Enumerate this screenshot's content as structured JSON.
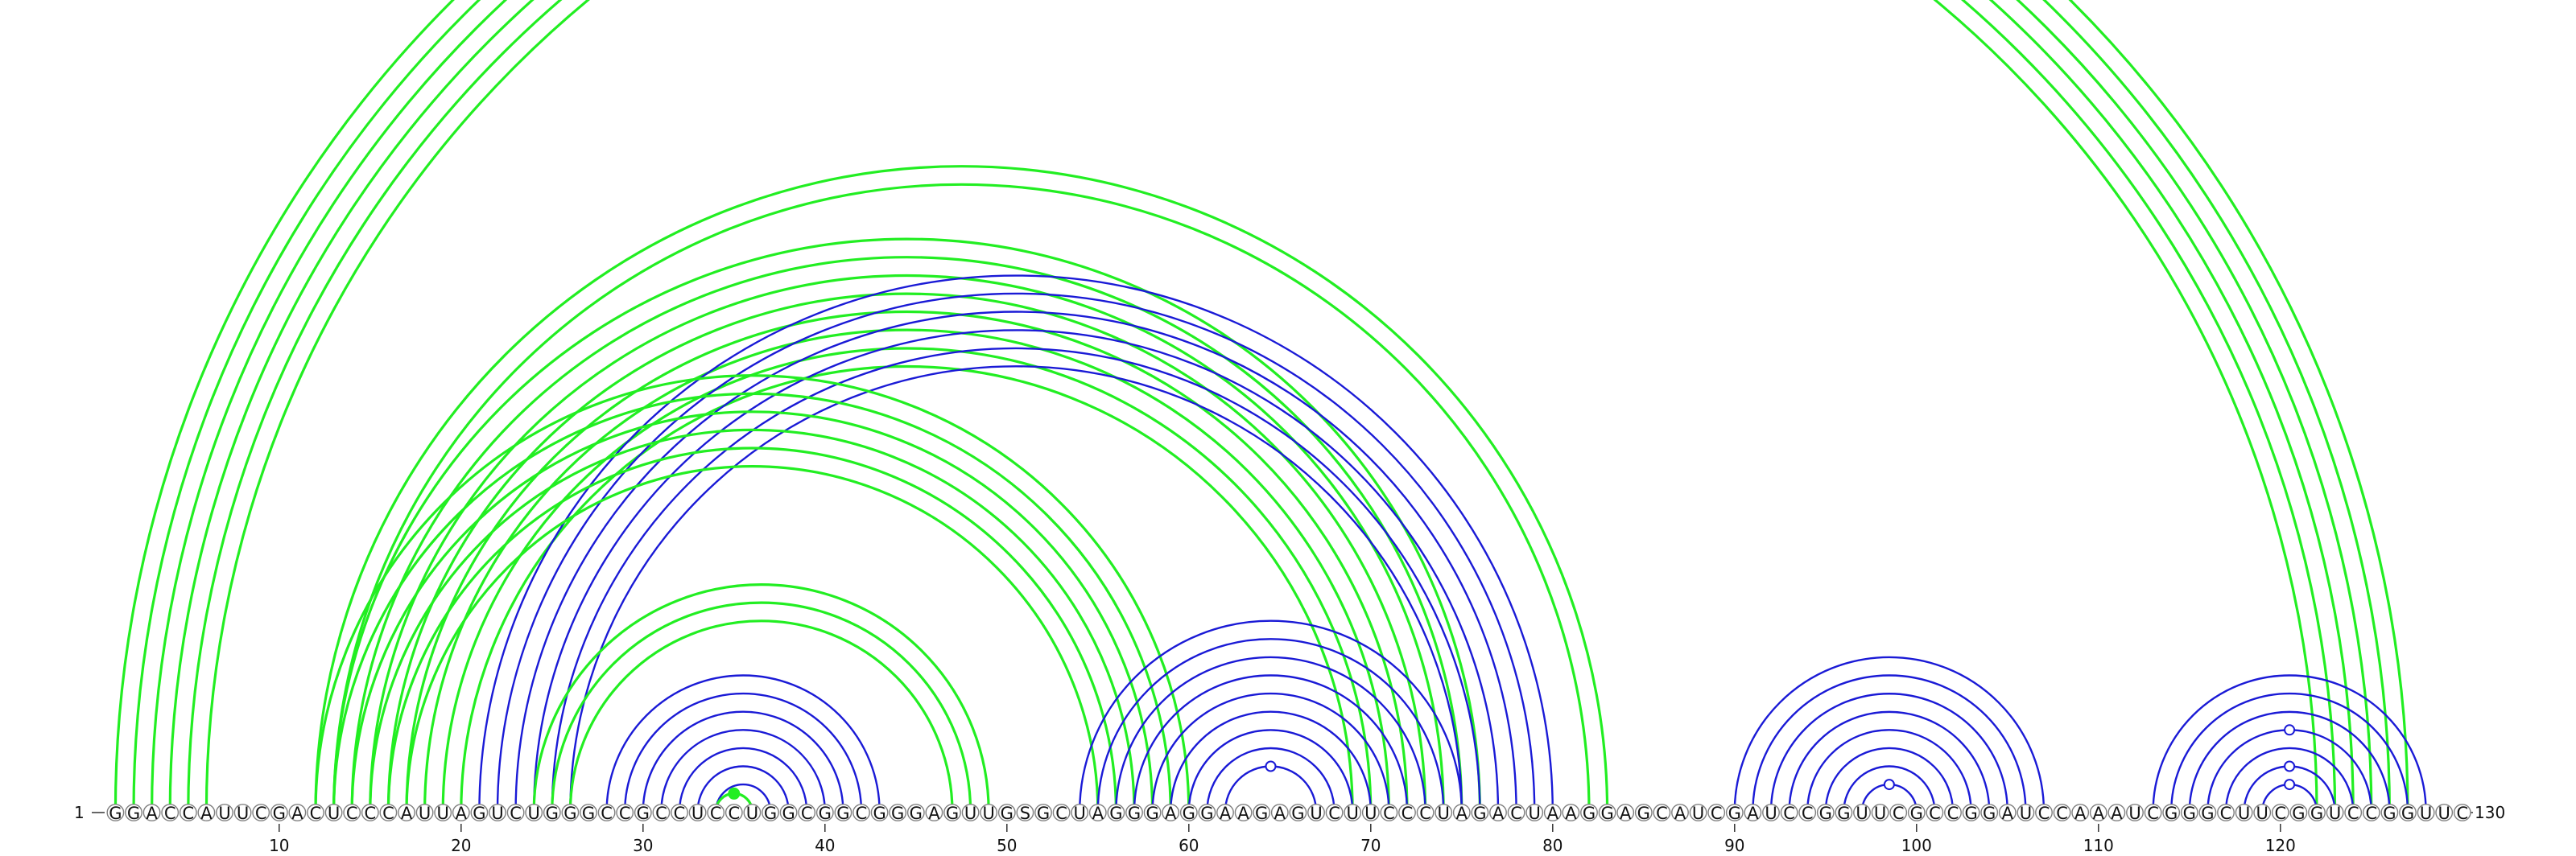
{
  "sequence": "GGACCAUUCGACUCCCAUUAGUCUGGGCCGCCUCCUGGCGGCGGGAGUUGSGCUAGGGAGGAAGAGUCUUCCCUAGACUAAGGAGCAUCGAUCCGGUUCGCCGGAUCCAAAUCGGGCUUCGGUCCGGUUC",
  "labels": {
    "start": "1",
    "end": "130",
    "ticks": [
      "10",
      "20",
      "30",
      "40",
      "50",
      "60",
      "70",
      "80",
      "90",
      "100",
      "110",
      "120"
    ]
  },
  "colors": {
    "green": "#22ee22",
    "blue": "#1a1ad6",
    "circle_stroke": "#808080"
  },
  "arc_groups": [
    {
      "name": "outer-helix",
      "color": "green",
      "pairs": [
        [
          1,
          127
        ],
        [
          2,
          126
        ],
        [
          3,
          125
        ],
        [
          4,
          124
        ],
        [
          5,
          123
        ],
        [
          6,
          122
        ]
      ]
    },
    {
      "name": "green-helix-12-83",
      "color": "green",
      "pairs": [
        [
          12,
          83
        ],
        [
          13,
          82
        ]
      ]
    },
    {
      "name": "green-helix-13-76",
      "color": "green",
      "pairs": [
        [
          13,
          76
        ],
        [
          14,
          75
        ],
        [
          15,
          74
        ],
        [
          16,
          73
        ],
        [
          17,
          72
        ],
        [
          18,
          71
        ],
        [
          19,
          70
        ],
        [
          20,
          69
        ]
      ]
    },
    {
      "name": "blue-helix-21-80",
      "color": "blue",
      "pairs": [
        [
          21,
          80
        ],
        [
          22,
          79
        ],
        [
          23,
          78
        ],
        [
          24,
          77
        ],
        [
          25,
          76
        ],
        [
          26,
          75
        ]
      ]
    },
    {
      "name": "green-helix-12-60",
      "color": "green",
      "pairs": [
        [
          12,
          60
        ],
        [
          13,
          59
        ],
        [
          14,
          58
        ],
        [
          15,
          57
        ],
        [
          16,
          56
        ],
        [
          17,
          55
        ]
      ]
    },
    {
      "name": "green-helix-24-49",
      "color": "green",
      "pairs": [
        [
          24,
          49
        ],
        [
          25,
          48
        ],
        [
          26,
          47
        ]
      ]
    },
    {
      "name": "blue-helix-28-43",
      "color": "blue",
      "pairs": [
        [
          28,
          43
        ],
        [
          29,
          42
        ],
        [
          30,
          41
        ],
        [
          31,
          40
        ],
        [
          32,
          39
        ],
        [
          33,
          38
        ],
        [
          34,
          37
        ]
      ]
    },
    {
      "name": "green-hairpin-34-36",
      "color": "green",
      "pairs": [
        [
          34,
          36
        ]
      ]
    },
    {
      "name": "blue-helix-54-75",
      "color": "blue",
      "pairs": [
        [
          54,
          75
        ],
        [
          55,
          74
        ],
        [
          56,
          73
        ],
        [
          57,
          72
        ],
        [
          58,
          71
        ],
        [
          59,
          70
        ],
        [
          60,
          69
        ],
        [
          61,
          68
        ],
        [
          62,
          67
        ]
      ]
    },
    {
      "name": "blue-helix-90-107",
      "color": "blue",
      "pairs": [
        [
          90,
          107
        ],
        [
          91,
          106
        ],
        [
          92,
          105
        ],
        [
          93,
          104
        ],
        [
          94,
          103
        ],
        [
          95,
          102
        ],
        [
          96,
          101
        ],
        [
          97,
          100
        ]
      ]
    },
    {
      "name": "blue-helix-113-128",
      "color": "blue",
      "pairs": [
        [
          113,
          128
        ],
        [
          114,
          127
        ],
        [
          115,
          126
        ],
        [
          116,
          125
        ],
        [
          117,
          124
        ],
        [
          118,
          123
        ],
        [
          119,
          122
        ]
      ]
    }
  ],
  "markers": [
    {
      "i": 34,
      "j": 36,
      "type": "filled",
      "color": "green"
    },
    {
      "i": 62,
      "j": 67,
      "type": "open",
      "color": "blue"
    },
    {
      "i": 97,
      "j": 100,
      "type": "open",
      "color": "blue"
    },
    {
      "i": 116,
      "j": 125,
      "type": "open",
      "color": "blue"
    },
    {
      "i": 118,
      "j": 123,
      "type": "open",
      "color": "blue"
    },
    {
      "i": 119,
      "j": 122,
      "type": "open",
      "color": "blue"
    }
  ]
}
